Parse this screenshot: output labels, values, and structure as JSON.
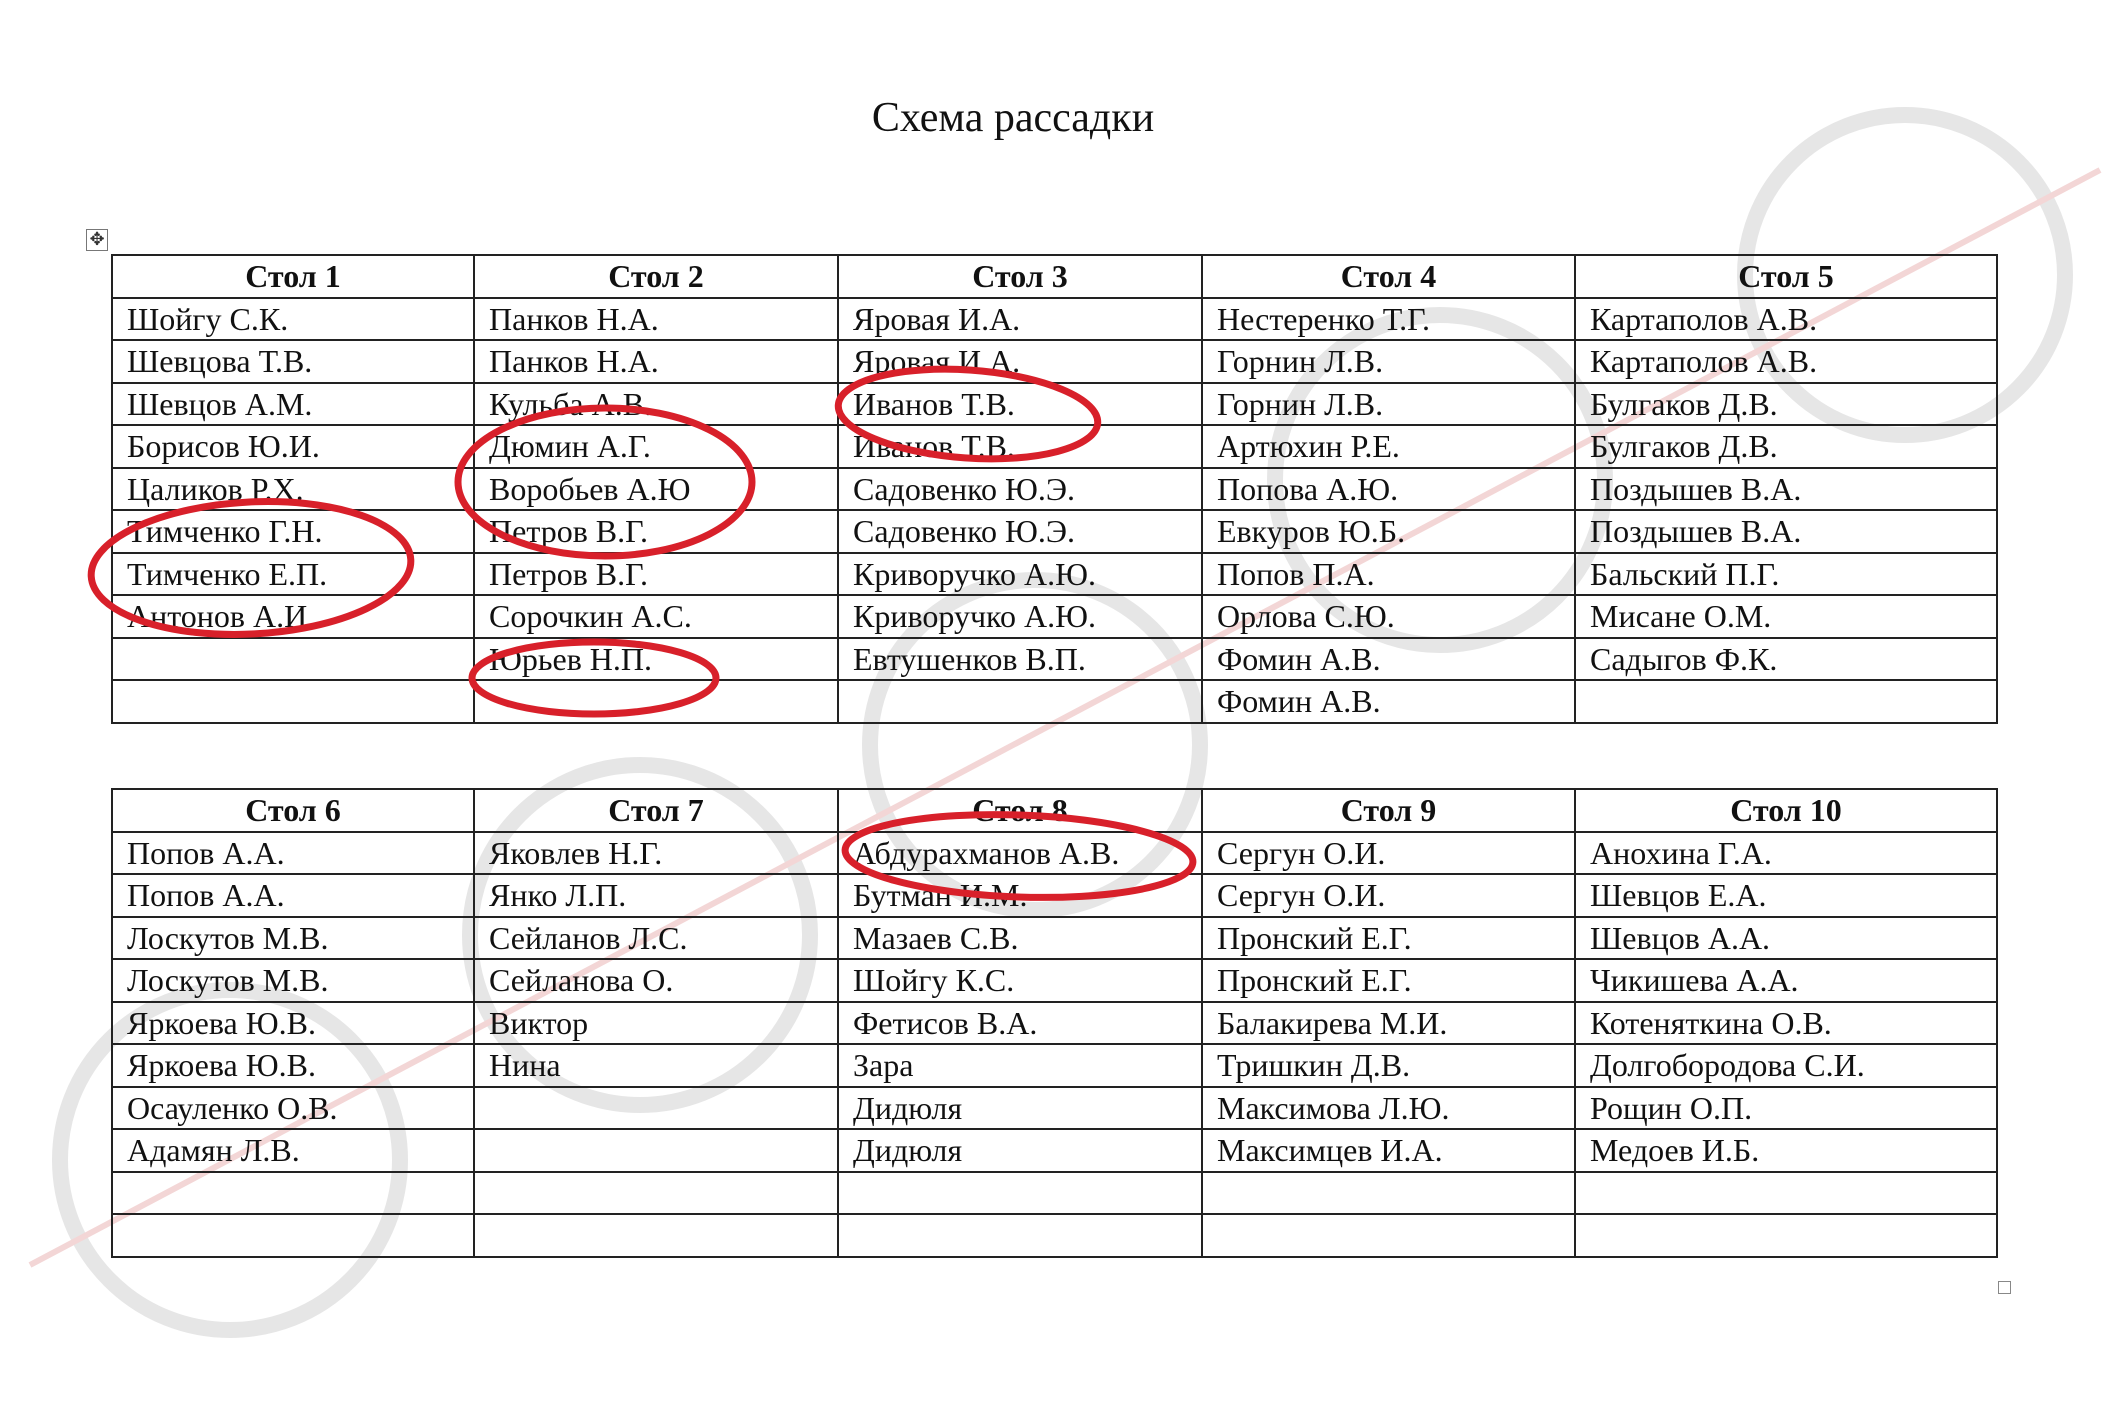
{
  "document": {
    "title": "Схема рассадки",
    "annotation_color": "#d8202a",
    "watermark_color": "#e4e4e4"
  },
  "tables": [
    {
      "columns": [
        {
          "header": "Стол 1",
          "rows": [
            "Шойгу С.К.",
            "Шевцова Т.В.",
            "Шевцов А.М.",
            "Борисов Ю.И.",
            "Цаликов Р.Х.",
            "Тимченко Г.Н.",
            "Тимченко Е.П.",
            "Антонов А.И.",
            "",
            ""
          ]
        },
        {
          "header": "Стол 2",
          "rows": [
            "Панков Н.А.",
            "Панков Н.А.",
            "Кульба А.В.",
            "Дюмин А.Г.",
            "Воробьев А.Ю",
            "Петров В.Г.",
            "Петров В.Г.",
            "Сорочкин А.С.",
            "Юрьев Н.П.",
            ""
          ]
        },
        {
          "header": "Стол 3",
          "rows": [
            "Яровая И.А.",
            "Яровая И.А.",
            "Иванов Т.В.",
            "Иванов Т.В.",
            "Садовенко Ю.Э.",
            "Садовенко Ю.Э.",
            "Криворучко А.Ю.",
            "Криворучко А.Ю.",
            "Евтушенков В.П.",
            ""
          ]
        },
        {
          "header": "Стол 4",
          "rows": [
            "Нестеренко Т.Г.",
            "Горнин Л.В.",
            "Горнин Л.В.",
            "Артюхин Р.Е.",
            "Попова А.Ю.",
            "Евкуров Ю.Б.",
            "Попов П.А.",
            "Орлова С.Ю.",
            "Фомин А.В.",
            "Фомин А.В."
          ]
        },
        {
          "header": "Стол 5",
          "rows": [
            "Картаполов А.В.",
            "Картаполов А.В.",
            "Булгаков Д.В.",
            "Булгаков Д.В.",
            "Поздышев В.А.",
            "Поздышев В.А.",
            "Бальский П.Г.",
            "Мисане О.М.",
            "Садыгов Ф.К.",
            ""
          ]
        }
      ]
    },
    {
      "columns": [
        {
          "header": "Стол 6",
          "rows": [
            "Попов А.А.",
            "Попов А.А.",
            "Лоскутов М.В.",
            "Лоскутов М.В.",
            "Яркоева Ю.В.",
            "Яркоева Ю.В.",
            "Осауленко О.В.",
            "Адамян Л.В.",
            "",
            ""
          ]
        },
        {
          "header": "Стол 7",
          "rows": [
            "Яковлев Н.Г.",
            "Янко Л.П.",
            "Сейланов Л.С.",
            "Сейланова О.",
            "Виктор",
            "Нина",
            "",
            "",
            "",
            ""
          ]
        },
        {
          "header": "Стол 8",
          "rows": [
            "Абдурахманов А.В.",
            "Бутман И.М.",
            "Мазаев С.В.",
            "Шойгу К.С.",
            "Фетисов В.А.",
            "Зара",
            "Дидюля",
            "Дидюля",
            "",
            ""
          ]
        },
        {
          "header": "Стол 9",
          "rows": [
            "Сергун О.И.",
            "Сергун О.И.",
            "Пронский Е.Г.",
            "Пронский Е.Г.",
            "Балакирева М.И.",
            "Тришкин Д.В.",
            "Максимова Л.Ю.",
            "Максимцев И.А.",
            "",
            ""
          ]
        },
        {
          "header": "Стол 10",
          "rows": [
            "Анохина Г.А.",
            "Шевцов Е.А.",
            "Шевцов А.А.",
            "Чикишева А.А.",
            "Котеняткина О.В.",
            "Долгобородова С.И.",
            "Рощин О.П.",
            "Медоев И.Б.",
            "",
            ""
          ]
        }
      ]
    }
  ],
  "icons": {
    "move_handle": "table-move-icon",
    "resize_handle": "table-resize-icon"
  }
}
